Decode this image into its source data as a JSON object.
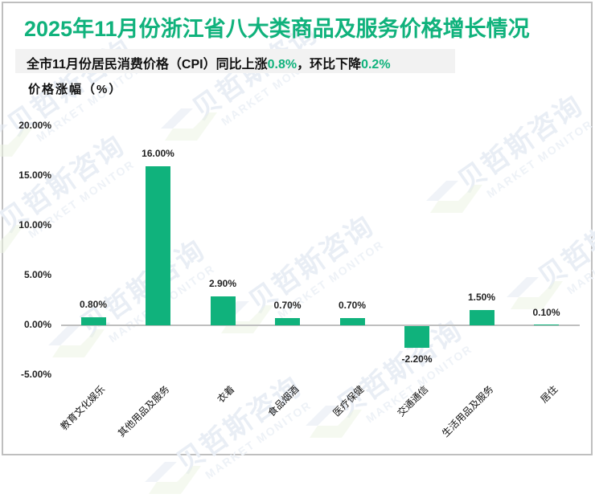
{
  "title": "2025年11月份浙江省八大类商品及服务价格增长情况",
  "subtitle": {
    "prefix": "全市11月份居民消费价格（CPI）同比上涨",
    "yoy_value": "0.8%",
    "middle": "，环比下降",
    "mom_value": "0.2%"
  },
  "watermark": {
    "cn": "贝哲斯咨询",
    "en": "MARKET MONITOR"
  },
  "colors": {
    "accent": "#10b27c",
    "bar": "#10b27c",
    "axis": "#bfbfbf",
    "subtitle_bg": "#f2f2f2"
  },
  "chart_data": {
    "type": "bar",
    "title": "2025年11月份浙江省八大类商品及服务价格增长情况",
    "subtitle": "全市11月份居民消费价格（CPI）同比上涨0.8%，环比下降0.2%",
    "xlabel": "",
    "ylabel": "价格涨幅（%）",
    "ylim": [
      -5,
      20
    ],
    "yticks": [
      "20.00%",
      "15.00%",
      "10.00%",
      "5.00%",
      "0.00%",
      "-5.00%"
    ],
    "grid": false,
    "legend": null,
    "categories": [
      "教育文化娱乐",
      "其他用品及服务",
      "衣着",
      "食品烟酒",
      "医疗保健",
      "交通通信",
      "生活用品及服务",
      "居住"
    ],
    "values": [
      0.8,
      16.0,
      2.9,
      0.7,
      0.7,
      -2.2,
      1.5,
      0.1
    ],
    "data_labels": [
      "0.80%",
      "16.00%",
      "2.90%",
      "0.70%",
      "0.70%",
      "-2.20%",
      "1.50%",
      "0.10%"
    ]
  }
}
